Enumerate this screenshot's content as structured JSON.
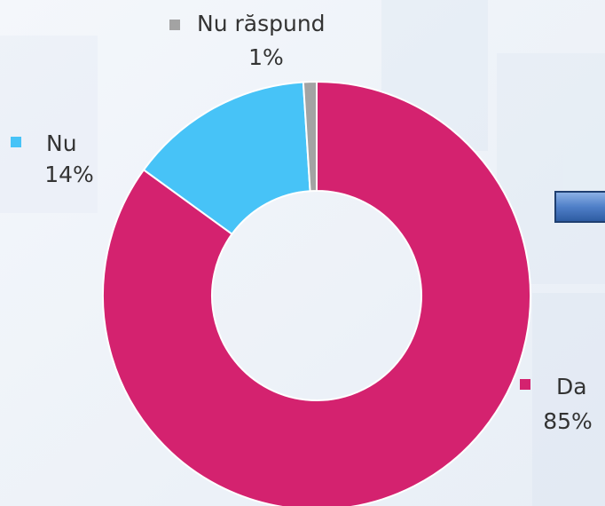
{
  "chart_data": {
    "type": "pie",
    "categories": [
      "Da",
      "Nu",
      "Nu răspund"
    ],
    "values": [
      85,
      14,
      1
    ],
    "value_labels": [
      "85%",
      "14%",
      "1%"
    ],
    "colors": [
      "#d4226f",
      "#47c3f7",
      "#a3a3a3"
    ],
    "donut": true
  }
}
